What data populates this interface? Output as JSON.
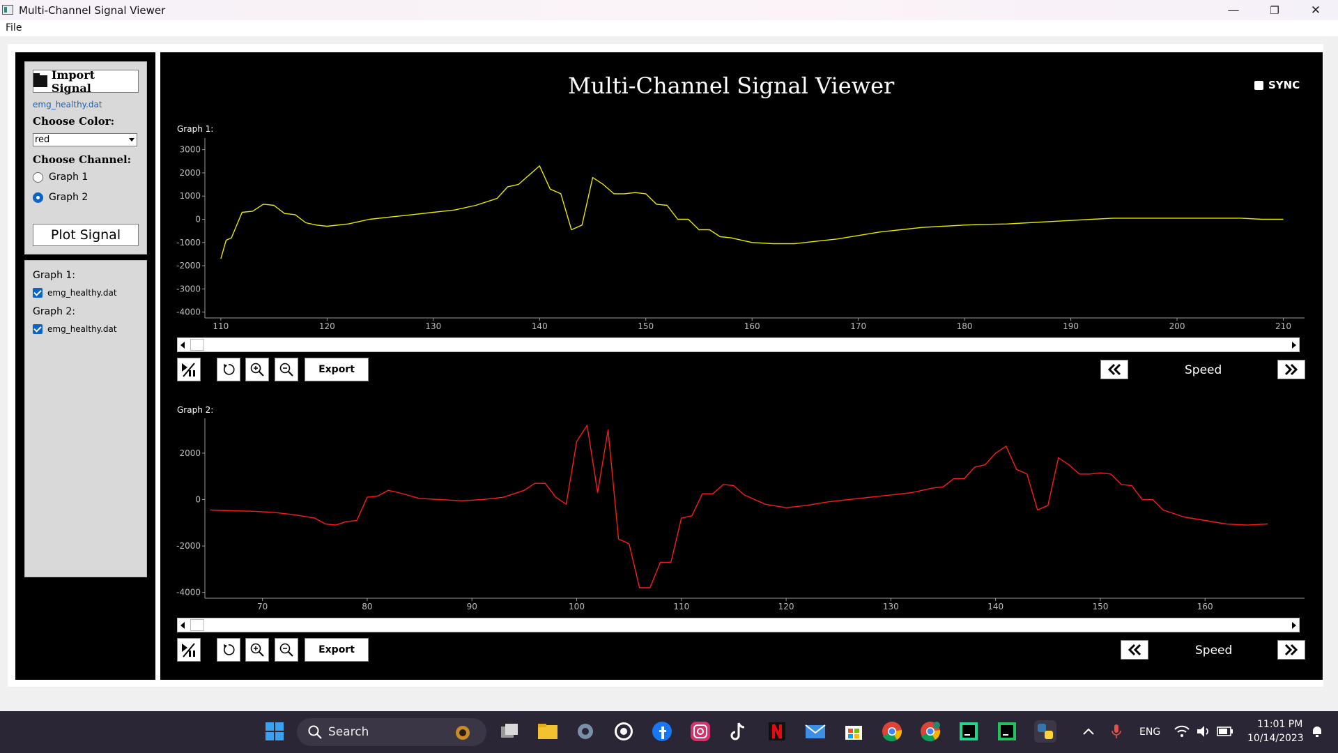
{
  "window": {
    "title": "Multi-Channel Signal Viewer",
    "minimize_glyph": "—",
    "restore_glyph": "❐",
    "close_glyph": "✕"
  },
  "menu": {
    "file": "File"
  },
  "sidebar": {
    "import_label": "Import Signal",
    "file_name": "emg_healthy.dat",
    "choose_color_label": "Choose Color:",
    "color_value": "red",
    "choose_channel_label": "Choose Channel:",
    "channels": [
      {
        "label": "Graph 1",
        "selected": false
      },
      {
        "label": "Graph 2",
        "selected": true
      }
    ],
    "plot_label": "Plot Signal",
    "loaded": [
      {
        "graph": "Graph 1:",
        "file": "emg_healthy.dat",
        "checked": true
      },
      {
        "graph": "Graph 2:",
        "file": "emg_healthy.dat",
        "checked": true
      }
    ]
  },
  "main": {
    "title": "Multi-Channel Signal Viewer",
    "sync_label": "SYNC",
    "export_label": "Export",
    "speed_label": "Speed",
    "graph1_label": "Graph 1:",
    "graph2_label": "Graph 2:"
  },
  "chart_data": [
    {
      "type": "line",
      "title": "Graph 1:",
      "color": "#e8e800",
      "xlim": [
        108.5,
        212
      ],
      "ylim": [
        -4250,
        3500
      ],
      "xticks": [
        110,
        120,
        130,
        140,
        150,
        160,
        170,
        180,
        190,
        200,
        210
      ],
      "yticks": [
        3000,
        2000,
        1000,
        0,
        -1000,
        -2000,
        -3000,
        -4000
      ],
      "x": [
        110,
        110.5,
        111,
        112,
        113,
        114,
        115,
        116,
        117,
        118,
        119,
        120,
        122,
        124,
        126,
        128,
        130,
        132,
        134,
        136,
        137,
        138,
        139,
        140,
        141,
        142,
        143,
        144,
        145,
        146,
        147,
        148,
        149,
        150,
        151,
        152,
        153,
        154,
        155,
        156,
        157,
        158,
        160,
        162,
        164,
        166,
        168,
        170,
        172,
        174,
        176,
        178,
        180,
        182,
        184,
        186,
        188,
        190,
        192,
        194,
        196,
        198,
        200,
        202,
        204,
        206,
        208,
        210
      ],
      "y": [
        -1700,
        -900,
        -800,
        300,
        350,
        650,
        600,
        250,
        200,
        -150,
        -250,
        -300,
        -200,
        0,
        100,
        200,
        300,
        400,
        600,
        900,
        1400,
        1500,
        1900,
        2300,
        1300,
        1100,
        -450,
        -250,
        1800,
        1500,
        1100,
        1100,
        1150,
        1100,
        650,
        600,
        0,
        0,
        -450,
        -450,
        -750,
        -800,
        -1000,
        -1050,
        -1050,
        -950,
        -850,
        -700,
        -550,
        -450,
        -350,
        -300,
        -250,
        -220,
        -200,
        -150,
        -100,
        -50,
        0,
        50,
        50,
        50,
        50,
        50,
        50,
        50,
        0,
        0
      ]
    },
    {
      "type": "line",
      "title": "Graph 2:",
      "color": "#ff1a1a",
      "xlim": [
        64.5,
        169.5
      ],
      "ylim": [
        -4250,
        3500
      ],
      "xticks": [
        70,
        80,
        90,
        100,
        110,
        120,
        130,
        140,
        150,
        160
      ],
      "yticks": [
        2000,
        0,
        -2000,
        -4000
      ],
      "x": [
        65,
        67,
        69,
        71,
        73,
        75,
        76,
        77,
        78,
        79,
        80,
        81,
        82,
        83,
        85,
        87,
        89,
        91,
        93,
        95,
        96,
        97,
        98,
        99,
        100,
        101,
        102,
        103,
        104,
        105,
        106,
        107,
        108,
        109,
        110,
        111,
        112,
        113,
        114,
        115,
        116,
        118,
        120,
        122,
        124,
        126,
        128,
        130,
        132,
        134,
        135,
        136,
        137,
        138,
        139,
        140,
        141,
        142,
        143,
        144,
        145,
        146,
        147,
        148,
        149,
        150,
        151,
        152,
        153,
        154,
        155,
        156,
        158,
        160,
        162,
        164,
        166
      ],
      "y": [
        -450,
        -480,
        -500,
        -550,
        -650,
        -800,
        -1050,
        -1100,
        -950,
        -900,
        100,
        150,
        400,
        300,
        50,
        0,
        -50,
        0,
        100,
        400,
        700,
        700,
        100,
        -200,
        2500,
        3200,
        300,
        3000,
        -1700,
        -1900,
        -3800,
        -3800,
        -2700,
        -2700,
        -800,
        -700,
        250,
        250,
        650,
        600,
        200,
        -200,
        -350,
        -250,
        -100,
        0,
        100,
        200,
        300,
        500,
        550,
        900,
        900,
        1400,
        1500,
        2000,
        2300,
        1300,
        1100,
        -450,
        -250,
        1800,
        1500,
        1100,
        1100,
        1150,
        1100,
        650,
        600,
        0,
        0,
        -450,
        -750,
        -900,
        -1050,
        -1100,
        -1050
      ]
    }
  ],
  "taskbar": {
    "search_label": "Search",
    "lang": "ENG",
    "time": "11:01 PM",
    "date": "10/14/2023"
  }
}
